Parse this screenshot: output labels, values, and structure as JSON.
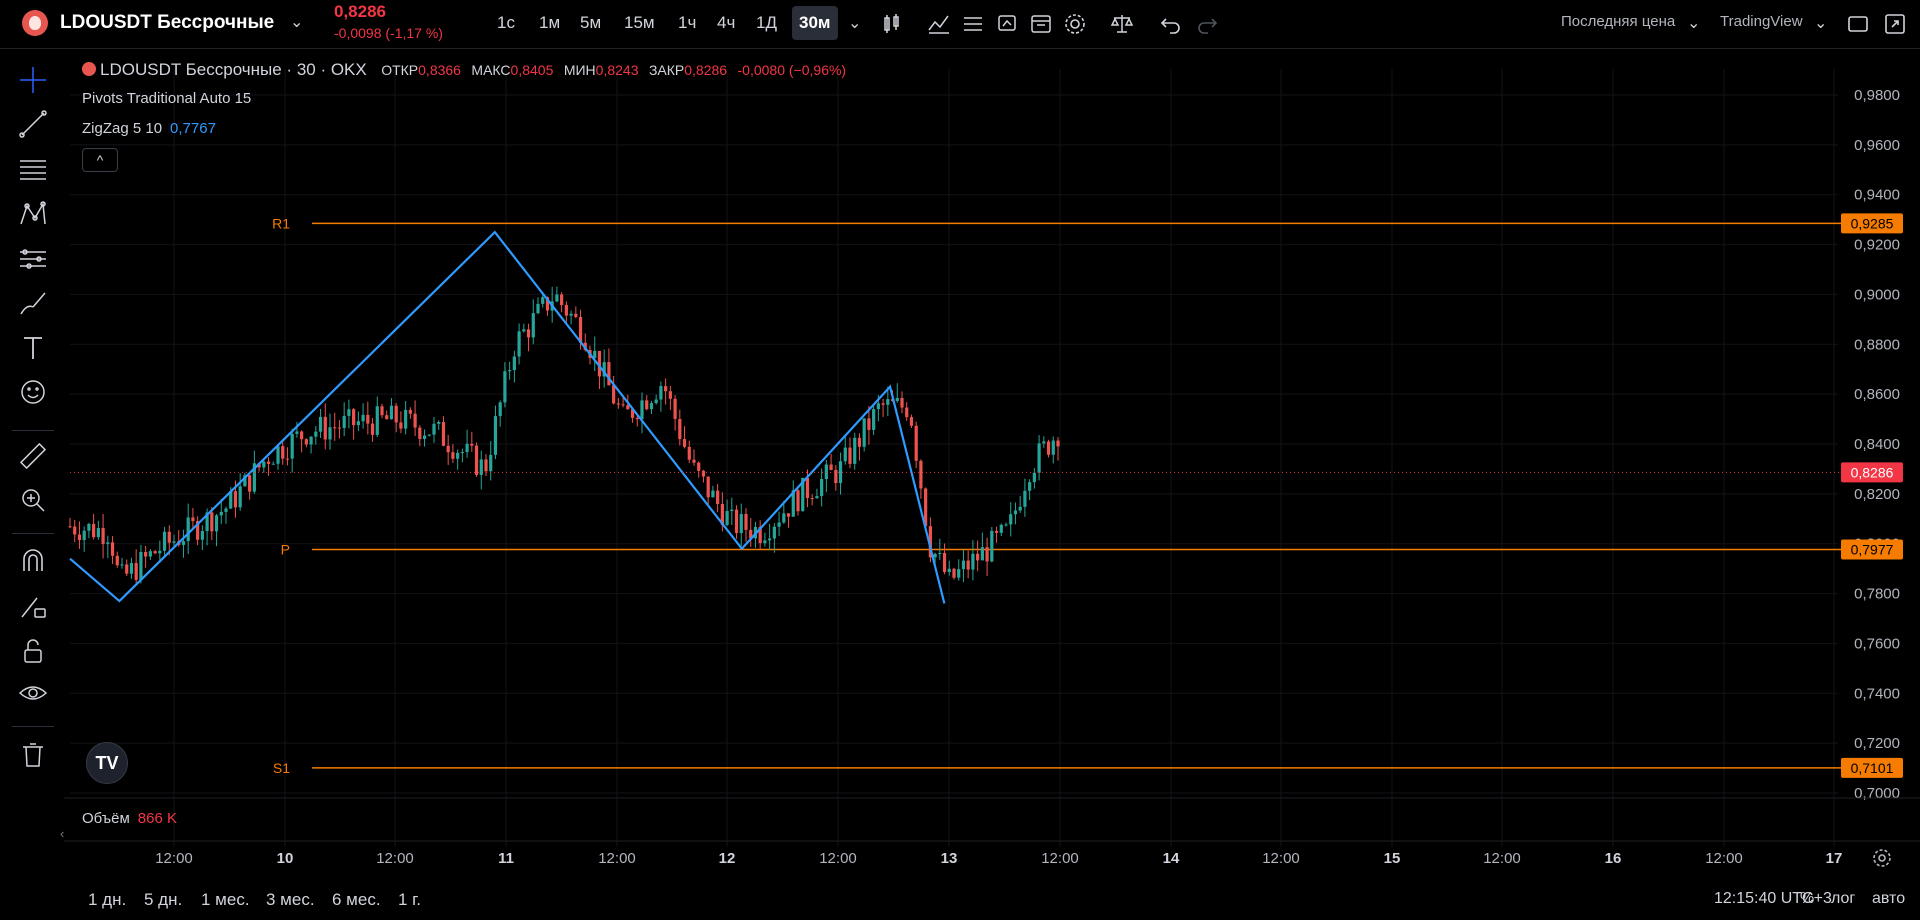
{
  "header": {
    "symbol": "LDOUSDT Бессрочные",
    "price": "0,8286",
    "change": "-0,0098 (-1,17 %)",
    "timeframes": [
      "1с",
      "1м",
      "5м",
      "15м",
      "1ч",
      "4ч",
      "1Д",
      "30м"
    ],
    "active_timeframe": "30м",
    "price_type": "Последняя цена",
    "chart_provider": "TradingView"
  },
  "legend": {
    "title": "LDOUSDT Бессрочные · 30 · OKX",
    "open_label": "ОТКР",
    "open": "0,8366",
    "high_label": "МАКС",
    "high": "0,8405",
    "low_label": "МИН",
    "low": "0,8243",
    "close_label": "ЗАКР",
    "close": "0,8286",
    "change": "-0,0080 (−0,96%)"
  },
  "indicators": {
    "pivots": "Pivots Traditional Auto 15",
    "zigzag": "ZigZag 5 10",
    "zigzag_value": "0,7767",
    "collapse_glyph": "^"
  },
  "volume": {
    "label": "Объём",
    "value": "866 K"
  },
  "bottom": {
    "ranges": [
      "1 дн.",
      "5 дн.",
      "1 мес.",
      "3 мес.",
      "6 мес.",
      "1 г."
    ],
    "clock": "12:15:40 UTC+3",
    "percent": "%",
    "log": "лог",
    "auto": "авто"
  },
  "colors": {
    "up": "#26a69a",
    "down": "#ef5350",
    "zigzag": "#2f9bff",
    "pivot": "#f57c00",
    "price_tag": "#f23645"
  },
  "chart_data": {
    "type": "candlestick",
    "ylim": [
      0.695,
      0.99
    ],
    "y_ticks": [
      "0,7000",
      "0,7200",
      "0,7400",
      "0,7600",
      "0,7800",
      "0,8000",
      "0,8200",
      "0,8400",
      "0,8600",
      "0,8800",
      "0,9000",
      "0,9200",
      "0,9400",
      "0,9600",
      "0,9800"
    ],
    "x_ticks": [
      "12:00",
      "10",
      "12:00",
      "11",
      "12:00",
      "12",
      "12:00",
      "13",
      "12:00",
      "14",
      "12:00",
      "15",
      "12:00",
      "16",
      "12:00",
      "17"
    ],
    "pivot_levels": [
      {
        "name": "R1",
        "value": 0.9285,
        "label": "0,9285"
      },
      {
        "name": "P",
        "value": 0.7977,
        "label": "0,7977"
      },
      {
        "name": "S1",
        "value": 0.7101,
        "label": "0,7101"
      }
    ],
    "last_price": {
      "value": 0.8286,
      "label": "0,8286"
    },
    "zigzag": [
      {
        "t": 0.0,
        "v": 0.794
      },
      {
        "t": 0.05,
        "v": 0.777
      },
      {
        "t": 0.43,
        "v": 0.925
      },
      {
        "t": 0.68,
        "v": 0.798
      },
      {
        "t": 0.83,
        "v": 0.863
      },
      {
        "t": 0.885,
        "v": 0.776
      }
    ],
    "close_path": [
      {
        "t": 0.0,
        "v": 0.807
      },
      {
        "t": 0.04,
        "v": 0.805
      },
      {
        "t": 0.05,
        "v": 0.785
      },
      {
        "t": 0.09,
        "v": 0.798
      },
      {
        "t": 0.12,
        "v": 0.805
      },
      {
        "t": 0.16,
        "v": 0.815
      },
      {
        "t": 0.2,
        "v": 0.835
      },
      {
        "t": 0.24,
        "v": 0.845
      },
      {
        "t": 0.28,
        "v": 0.848
      },
      {
        "t": 0.33,
        "v": 0.85
      },
      {
        "t": 0.37,
        "v": 0.845
      },
      {
        "t": 0.42,
        "v": 0.83
      },
      {
        "t": 0.45,
        "v": 0.88
      },
      {
        "t": 0.49,
        "v": 0.9
      },
      {
        "t": 0.52,
        "v": 0.885
      },
      {
        "t": 0.56,
        "v": 0.85
      },
      {
        "t": 0.6,
        "v": 0.865
      },
      {
        "t": 0.63,
        "v": 0.83
      },
      {
        "t": 0.67,
        "v": 0.808
      },
      {
        "t": 0.7,
        "v": 0.805
      },
      {
        "t": 0.74,
        "v": 0.82
      },
      {
        "t": 0.78,
        "v": 0.83
      },
      {
        "t": 0.82,
        "v": 0.855
      },
      {
        "t": 0.85,
        "v": 0.855
      },
      {
        "t": 0.87,
        "v": 0.8
      },
      {
        "t": 0.89,
        "v": 0.785
      },
      {
        "t": 0.92,
        "v": 0.795
      },
      {
        "t": 0.95,
        "v": 0.805
      },
      {
        "t": 0.97,
        "v": 0.83
      },
      {
        "t": 1.0,
        "v": 0.845
      }
    ]
  }
}
